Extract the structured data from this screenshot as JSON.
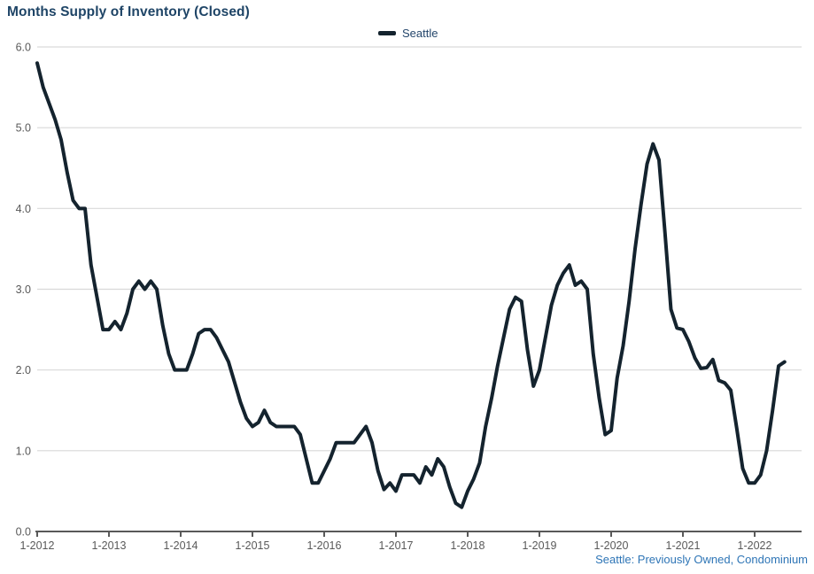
{
  "chart_data": {
    "type": "line",
    "title": "Months Supply of Inventory (Closed)",
    "footnote": "Seattle: Previously Owned, Condominium",
    "legend": {
      "position": "top-center",
      "entries": [
        "Seattle"
      ]
    },
    "x_tick_labels": [
      "1-2012",
      "1-2013",
      "1-2014",
      "1-2015",
      "1-2016",
      "1-2017",
      "1-2018",
      "1-2019",
      "1-2020",
      "1-2021",
      "1-2022"
    ],
    "y_tick_labels": [
      "0.0",
      "1.0",
      "2.0",
      "3.0",
      "4.0",
      "5.0",
      "6.0"
    ],
    "y_ticks": [
      0,
      1,
      2,
      3,
      4,
      5,
      6
    ],
    "ylim": [
      0,
      6
    ],
    "grid": "horizontal",
    "series": [
      {
        "name": "Seattle",
        "color": "#14232e",
        "start_month": "2012-01",
        "frequency": "monthly",
        "values": [
          5.8,
          5.5,
          5.3,
          5.1,
          4.85,
          4.45,
          4.1,
          4.0,
          4.0,
          3.3,
          2.9,
          2.5,
          2.5,
          2.6,
          2.5,
          2.7,
          3.0,
          3.1,
          3.0,
          3.1,
          3.0,
          2.55,
          2.2,
          2.0,
          2.0,
          2.0,
          2.2,
          2.45,
          2.5,
          2.5,
          2.4,
          2.25,
          2.1,
          1.85,
          1.6,
          1.4,
          1.3,
          1.35,
          1.5,
          1.35,
          1.3,
          1.3,
          1.3,
          1.3,
          1.2,
          0.9,
          0.6,
          0.6,
          0.75,
          0.9,
          1.1,
          1.1,
          1.1,
          1.1,
          1.2,
          1.3,
          1.1,
          0.75,
          0.52,
          0.6,
          0.5,
          0.7,
          0.7,
          0.7,
          0.6,
          0.8,
          0.7,
          0.9,
          0.8,
          0.55,
          0.35,
          0.3,
          0.5,
          0.65,
          0.85,
          1.3,
          1.65,
          2.05,
          2.4,
          2.75,
          2.9,
          2.85,
          2.25,
          1.8,
          2.0,
          2.4,
          2.8,
          3.05,
          3.2,
          3.3,
          3.05,
          3.1,
          3.0,
          2.2,
          1.65,
          1.2,
          1.25,
          1.9,
          2.3,
          2.85,
          3.5,
          4.05,
          4.55,
          4.8,
          4.6,
          3.7,
          2.75,
          2.52,
          2.5,
          2.35,
          2.15,
          2.02,
          2.03,
          2.13,
          1.87,
          1.84,
          1.75,
          1.28,
          0.78,
          0.6,
          0.6,
          0.7,
          1.0,
          1.5,
          2.05,
          2.1
        ]
      }
    ],
    "colors": {
      "title": "#1e4466",
      "legend_text": "#24466b",
      "line": "#14232e",
      "gridline": "#d9d9d9",
      "axis_line": "#595959",
      "axis_text": "#595959",
      "footnote": "#2e75b6"
    }
  }
}
